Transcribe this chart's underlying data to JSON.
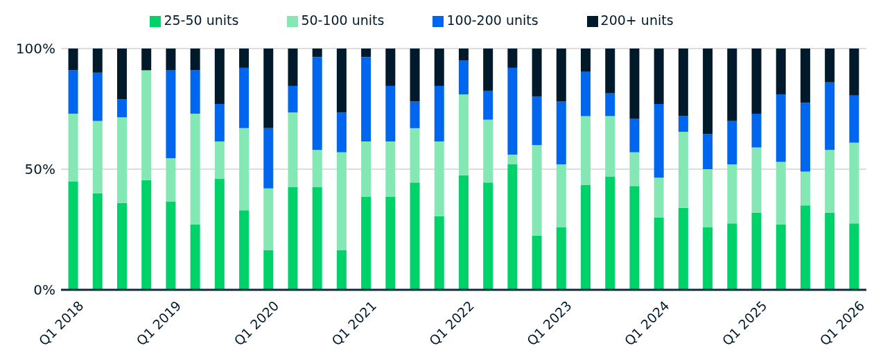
{
  "chart_data": {
    "type": "bar",
    "stacked": true,
    "legend": "top",
    "grid": "y",
    "categories": [
      "Q1 2018",
      null,
      null,
      null,
      "Q1 2019",
      null,
      null,
      null,
      "Q1 2020",
      null,
      null,
      null,
      "Q1 2021",
      null,
      null,
      null,
      "Q1 2022",
      null,
      null,
      null,
      "Q1 2023",
      null,
      null,
      null,
      "Q1 2024",
      null,
      null,
      null,
      "Q1 2025",
      null,
      null,
      null,
      "Q1 2026"
    ],
    "ylim": [
      0,
      100
    ],
    "yticks": [
      {
        "value": 0,
        "label": "0%"
      },
      {
        "value": 50,
        "label": "50%"
      },
      {
        "value": 100,
        "label": "100%"
      }
    ],
    "series": [
      {
        "name": "25-50 units",
        "color": "#00d26a",
        "values": [
          45,
          40,
          36,
          45.5,
          36.5,
          27,
          46,
          33,
          16.5,
          42.5,
          42.5,
          16.5,
          38.5,
          38.5,
          44.5,
          30.5,
          47.5,
          44.5,
          52,
          22.5,
          26,
          43.5,
          47,
          43,
          30,
          34,
          26,
          27.5,
          32,
          27,
          35,
          32,
          27.5
        ]
      },
      {
        "name": "50-100 units",
        "color": "#84e8b4",
        "values": [
          28,
          30,
          35.5,
          45.5,
          18,
          46,
          15.5,
          34,
          25.5,
          31,
          15.5,
          40.5,
          23,
          23,
          22.5,
          31,
          33.5,
          26,
          4,
          37.5,
          26,
          28.5,
          25,
          14,
          16.5,
          31.5,
          24,
          24.5,
          27,
          26,
          14,
          26,
          33.5
        ]
      },
      {
        "name": "100-200 units",
        "color": "#0066ee",
        "values": [
          18,
          20,
          7.5,
          0,
          36.5,
          18,
          15.5,
          25,
          25,
          11,
          38.5,
          16.5,
          35,
          23,
          11,
          23,
          14,
          12,
          36,
          20,
          26,
          18.5,
          9.5,
          14,
          30.5,
          6.5,
          14.5,
          18,
          14,
          28,
          28.5,
          28,
          19.5
        ]
      },
      {
        "name": "200+ units",
        "color": "#001a2c",
        "values": [
          9,
          10,
          21,
          9,
          9,
          9,
          23,
          8,
          33,
          15.5,
          3.5,
          26.5,
          3.5,
          15.5,
          22,
          15.5,
          5,
          17.5,
          8,
          20,
          22,
          9.5,
          18.5,
          29,
          23,
          28,
          35.5,
          30,
          27,
          19,
          22.5,
          14,
          19.5
        ]
      }
    ]
  }
}
